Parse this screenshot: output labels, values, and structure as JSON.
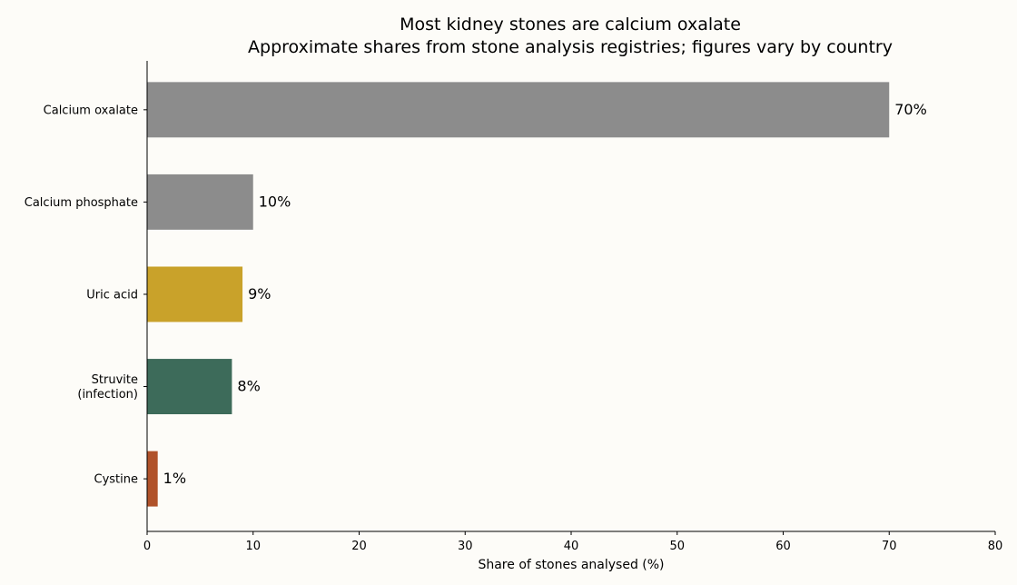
{
  "chart_data": {
    "type": "bar",
    "orientation": "horizontal",
    "title": "Most kidney stones are calcium oxalate",
    "subtitle": "Approximate shares from stone analysis registries; figures vary by country",
    "xlabel": "Share of stones analysed (%)",
    "ylabel": "",
    "xlim": [
      0,
      80
    ],
    "xticks": [
      0,
      10,
      20,
      30,
      40,
      50,
      60,
      70,
      80
    ],
    "grid": false,
    "bars": [
      {
        "category": [
          "Calcium oxalate"
        ],
        "value": 70,
        "label": "70%",
        "color": "#8c8c8c"
      },
      {
        "category": [
          "Calcium phosphate"
        ],
        "value": 10,
        "label": "10%",
        "color": "#8c8c8c"
      },
      {
        "category": [
          "Uric acid"
        ],
        "value": 9,
        "label": "9%",
        "color": "#c9a22a"
      },
      {
        "category": [
          "Struvite",
          "(infection)"
        ],
        "value": 8,
        "label": "8%",
        "color": "#3d6b5a"
      },
      {
        "category": [
          "Cystine"
        ],
        "value": 1,
        "label": "1%",
        "color": "#b0522a"
      }
    ]
  }
}
